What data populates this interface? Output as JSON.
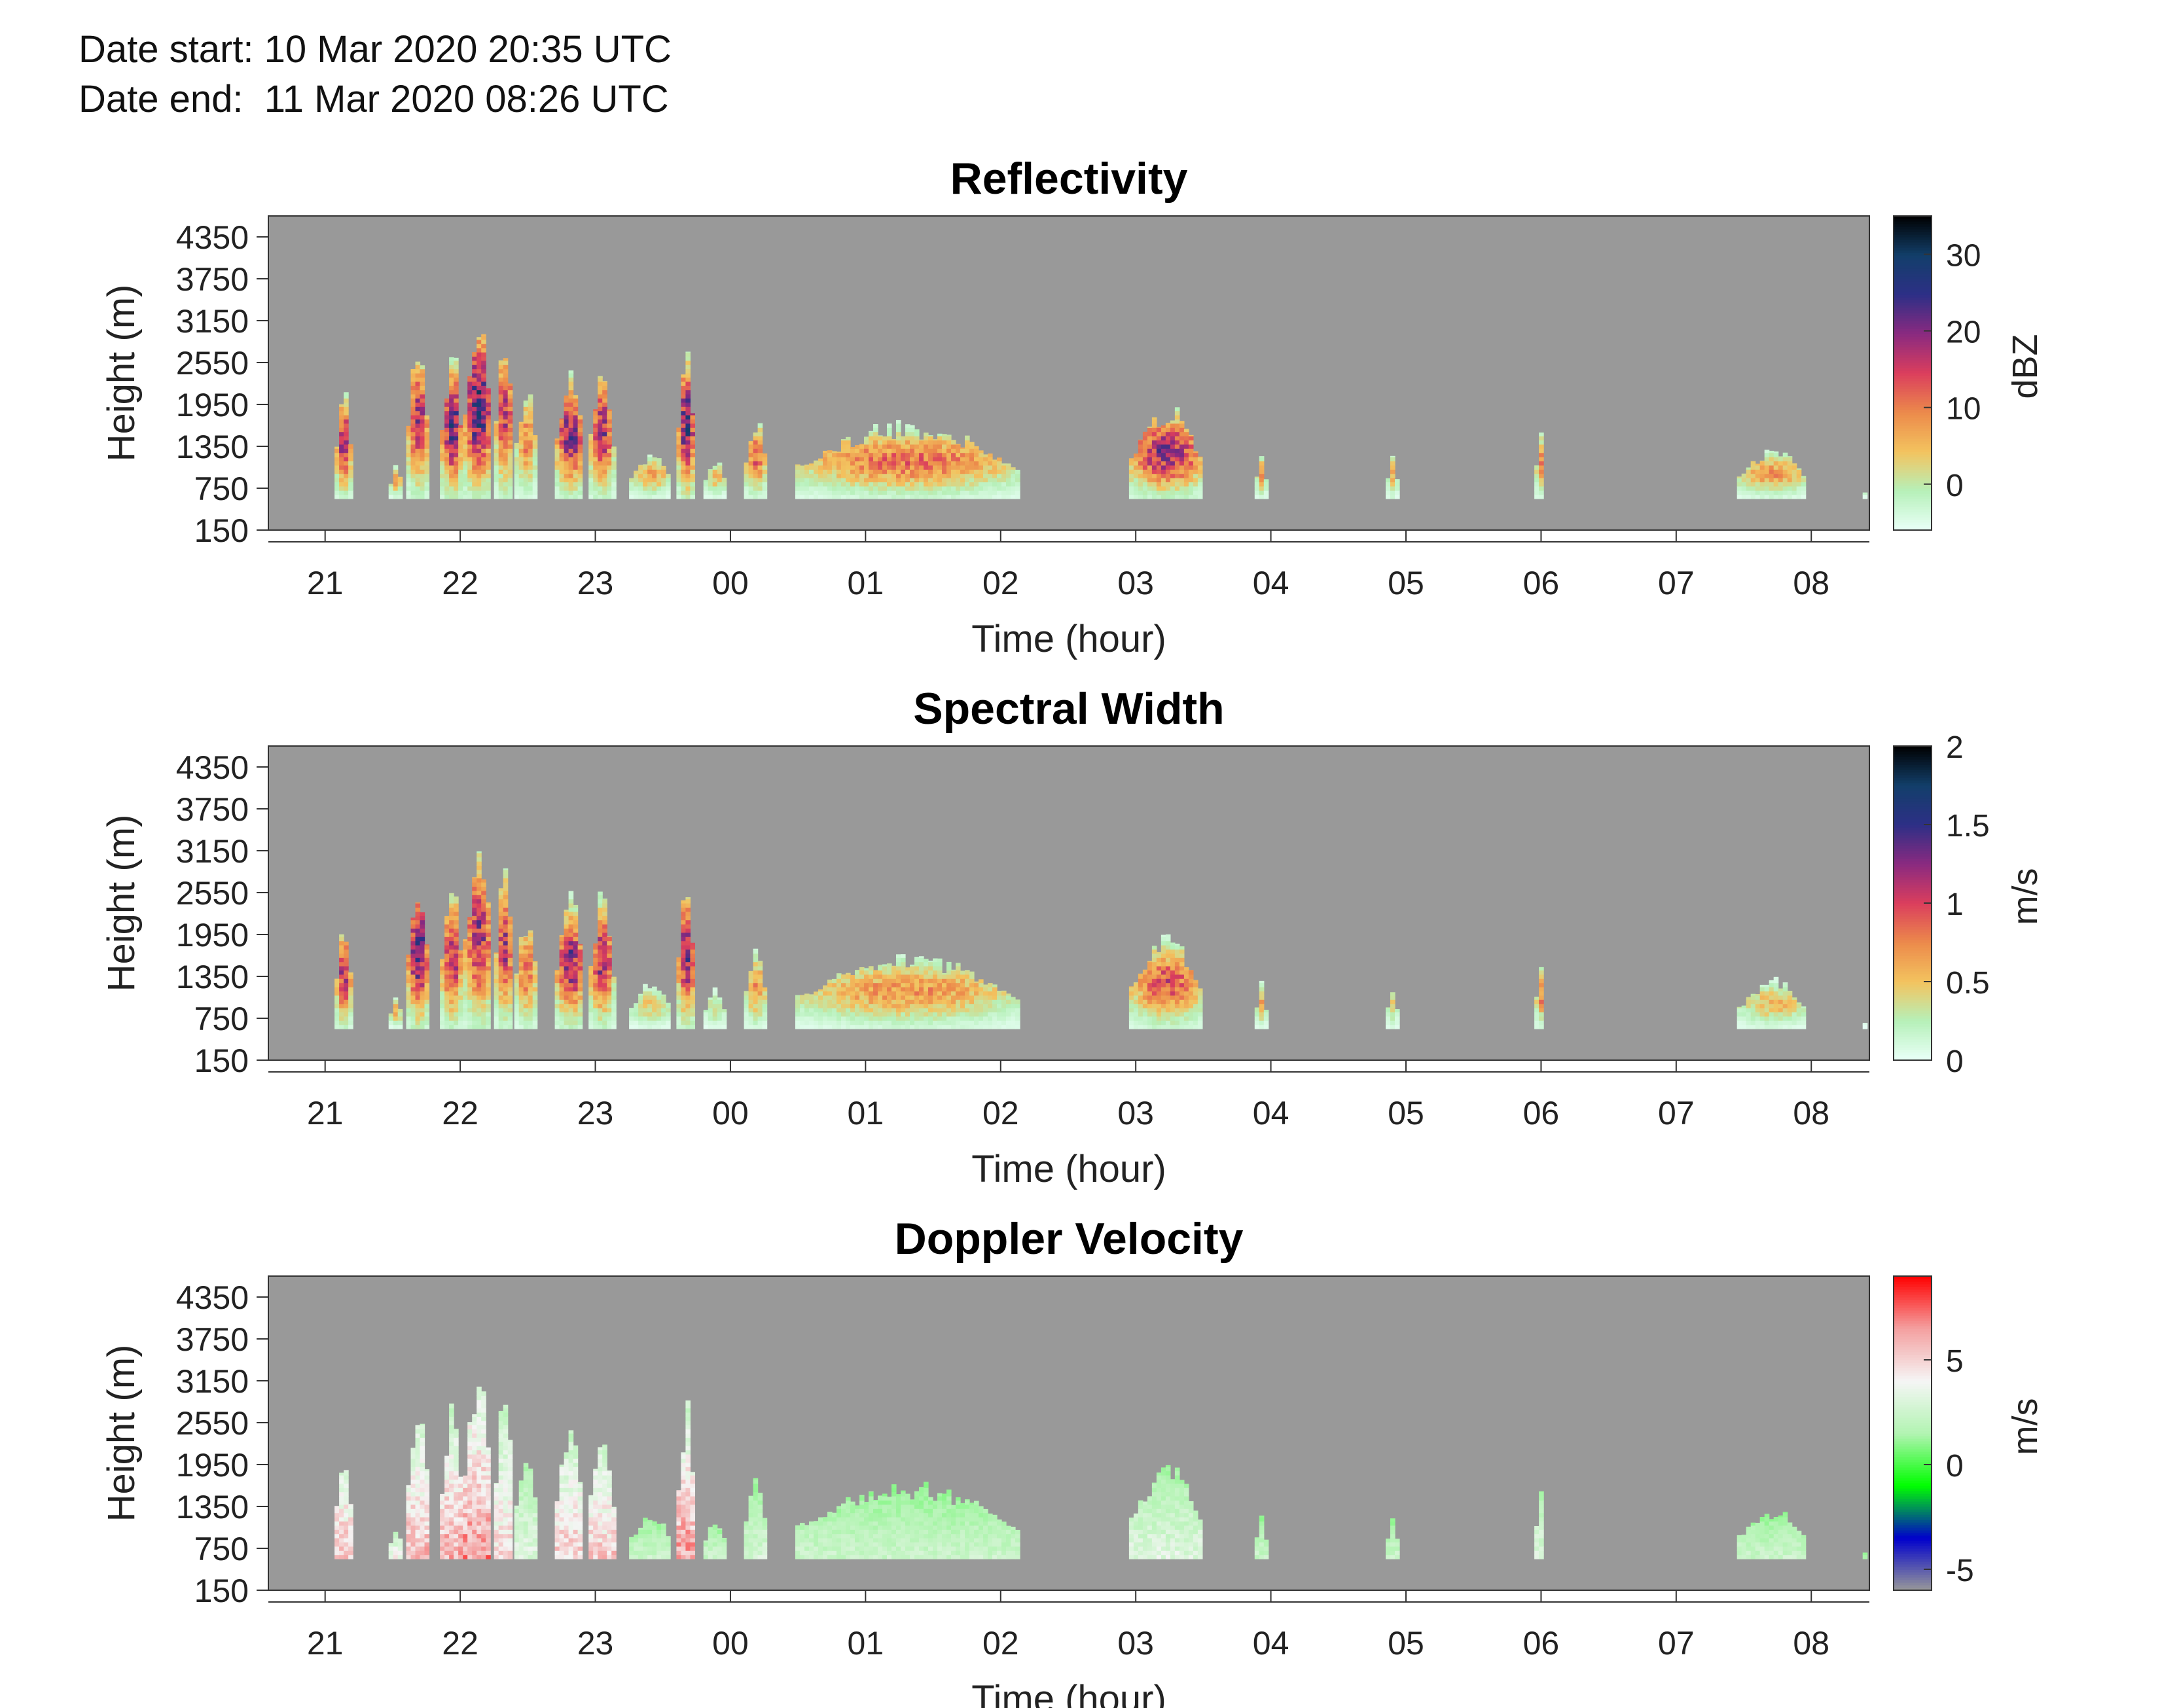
{
  "header": {
    "date_start_label": "Date start:",
    "date_start_value": "10 Mar 2020 20:35 UTC",
    "date_end_label": "Date end:",
    "date_end_value": "11 Mar 2020 08:26 UTC"
  },
  "colors": {
    "missing_background": "#999999",
    "reflectivity_colormap": [
      "#eafff8",
      "#b6f0b9",
      "#f3c35f",
      "#ec8a4b",
      "#db3e5d",
      "#8a2a80",
      "#2d2f86",
      "#123f6a",
      "#000000"
    ],
    "spectral_width_colormap": [
      "#eafff8",
      "#b6f0b9",
      "#f3c35f",
      "#ec8a4b",
      "#db3e5d",
      "#8a2a80",
      "#2d2f86",
      "#123f6a",
      "#000000"
    ],
    "doppler_colormap": [
      "#999999",
      "#0000cc",
      "#00ff00",
      "#b2f4b2",
      "#f5f5f5",
      "#f4a0a0",
      "#ff0000"
    ]
  },
  "chart_data": [
    {
      "type": "heatmap",
      "title": "Reflectivity",
      "xlabel": "Time (hour)",
      "ylabel": "Height (m)",
      "colorbar_label": "dBZ",
      "colorbar_ticks": [
        "0",
        "10",
        "20",
        "30"
      ],
      "colorbar_tick_values": [
        0,
        10,
        20,
        30
      ],
      "colorbar_range": [
        -6,
        35
      ],
      "x_ticks": [
        "21",
        "22",
        "23",
        "00",
        "01",
        "02",
        "03",
        "04",
        "05",
        "06",
        "07",
        "08"
      ],
      "x_tick_values": [
        21,
        22,
        23,
        24,
        25,
        26,
        27,
        28,
        29,
        30,
        31,
        32
      ],
      "xlim": [
        20.58,
        32.43
      ],
      "y_ticks": [
        "150",
        "750",
        "1350",
        "1950",
        "2550",
        "3150",
        "3750",
        "4350"
      ],
      "y_tick_values": [
        150,
        750,
        1350,
        1950,
        2550,
        3150,
        3750,
        4350
      ],
      "ylim": [
        150,
        4650
      ],
      "grid": false,
      "echo_cells": [
        {
          "start": 21.07,
          "end": 21.18,
          "top": 2300,
          "peak": 25
        },
        {
          "start": 21.47,
          "end": 21.55,
          "top": 1100,
          "peak": 12
        },
        {
          "start": 21.6,
          "end": 21.75,
          "top": 3000,
          "peak": 24
        },
        {
          "start": 21.85,
          "end": 22.0,
          "top": 2850,
          "peak": 30
        },
        {
          "start": 22.02,
          "end": 22.22,
          "top": 3500,
          "peak": 33
        },
        {
          "start": 22.25,
          "end": 22.38,
          "top": 3200,
          "peak": 22
        },
        {
          "start": 22.4,
          "end": 22.55,
          "top": 2400,
          "peak": 14
        },
        {
          "start": 22.7,
          "end": 22.9,
          "top": 2600,
          "peak": 27
        },
        {
          "start": 22.95,
          "end": 23.12,
          "top": 2700,
          "peak": 25
        },
        {
          "start": 23.25,
          "end": 23.55,
          "top": 1300,
          "peak": 10
        },
        {
          "start": 23.6,
          "end": 23.72,
          "top": 2900,
          "peak": 32
        },
        {
          "start": 23.8,
          "end": 23.95,
          "top": 1200,
          "peak": 8
        },
        {
          "start": 24.1,
          "end": 24.25,
          "top": 1850,
          "peak": 17
        },
        {
          "start": 24.48,
          "end": 26.12,
          "top": 1750,
          "peak": 16
        },
        {
          "start": 26.95,
          "end": 27.48,
          "top": 2000,
          "peak": 26
        },
        {
          "start": 27.88,
          "end": 27.95,
          "top": 1300,
          "peak": 12
        },
        {
          "start": 28.85,
          "end": 28.92,
          "top": 1300,
          "peak": 10
        },
        {
          "start": 29.95,
          "end": 30.0,
          "top": 1700,
          "peak": 14
        },
        {
          "start": 31.45,
          "end": 31.95,
          "top": 1350,
          "peak": 12
        },
        {
          "start": 32.38,
          "end": 32.4,
          "top": 800,
          "peak": 3
        }
      ]
    },
    {
      "type": "heatmap",
      "title": "Spectral Width",
      "xlabel": "Time (hour)",
      "ylabel": "Height (m)",
      "colorbar_label": "m/s",
      "colorbar_ticks": [
        "0",
        "0.5",
        "1",
        "1.5",
        "2"
      ],
      "colorbar_tick_values": [
        0,
        0.5,
        1,
        1.5,
        2
      ],
      "colorbar_range": [
        0,
        2
      ],
      "x_ticks": [
        "21",
        "22",
        "23",
        "00",
        "01",
        "02",
        "03",
        "04",
        "05",
        "06",
        "07",
        "08"
      ],
      "x_tick_values": [
        21,
        22,
        23,
        24,
        25,
        26,
        27,
        28,
        29,
        30,
        31,
        32
      ],
      "xlim": [
        20.58,
        32.43
      ],
      "y_ticks": [
        "150",
        "750",
        "1350",
        "1950",
        "2550",
        "3150",
        "3750",
        "4350"
      ],
      "y_tick_values": [
        150,
        750,
        1350,
        1950,
        2550,
        3150,
        3750,
        4350
      ],
      "ylim": [
        150,
        4650
      ],
      "grid": false,
      "echo_cells": [
        {
          "start": 21.07,
          "end": 21.18,
          "top": 2300,
          "peak": 1.5
        },
        {
          "start": 21.47,
          "end": 21.55,
          "top": 1100,
          "peak": 0.8
        },
        {
          "start": 21.6,
          "end": 21.75,
          "top": 3000,
          "peak": 1.8
        },
        {
          "start": 21.85,
          "end": 22.0,
          "top": 2850,
          "peak": 1.5
        },
        {
          "start": 22.02,
          "end": 22.22,
          "top": 3500,
          "peak": 1.5
        },
        {
          "start": 22.25,
          "end": 22.38,
          "top": 3200,
          "peak": 1.4
        },
        {
          "start": 22.4,
          "end": 22.55,
          "top": 2400,
          "peak": 1.1
        },
        {
          "start": 22.7,
          "end": 22.9,
          "top": 2600,
          "peak": 1.6
        },
        {
          "start": 22.95,
          "end": 23.12,
          "top": 2700,
          "peak": 1.5
        },
        {
          "start": 23.25,
          "end": 23.55,
          "top": 1300,
          "peak": 0.6
        },
        {
          "start": 23.6,
          "end": 23.72,
          "top": 2900,
          "peak": 1.7
        },
        {
          "start": 23.8,
          "end": 23.95,
          "top": 1200,
          "peak": 0.5
        },
        {
          "start": 24.1,
          "end": 24.25,
          "top": 1850,
          "peak": 0.9
        },
        {
          "start": 24.48,
          "end": 26.12,
          "top": 1750,
          "peak": 0.9
        },
        {
          "start": 26.95,
          "end": 27.48,
          "top": 2000,
          "peak": 1.2
        },
        {
          "start": 27.88,
          "end": 27.95,
          "top": 1300,
          "peak": 0.8
        },
        {
          "start": 28.85,
          "end": 28.92,
          "top": 1300,
          "peak": 0.6
        },
        {
          "start": 29.95,
          "end": 30.0,
          "top": 1700,
          "peak": 1.1
        },
        {
          "start": 31.45,
          "end": 31.95,
          "top": 1350,
          "peak": 0.7
        },
        {
          "start": 32.38,
          "end": 32.4,
          "top": 800,
          "peak": 0.2
        }
      ]
    },
    {
      "type": "heatmap",
      "title": "Doppler Velocity",
      "xlabel": "Time (hour)",
      "ylabel": "Height (m)",
      "colorbar_label": "m/s",
      "colorbar_ticks": [
        "-5",
        "0",
        "5"
      ],
      "colorbar_tick_values": [
        -5,
        0,
        5
      ],
      "colorbar_range": [
        -6,
        9
      ],
      "x_ticks": [
        "21",
        "22",
        "23",
        "00",
        "01",
        "02",
        "03",
        "04",
        "05",
        "06",
        "07",
        "08"
      ],
      "x_tick_values": [
        21,
        22,
        23,
        24,
        25,
        26,
        27,
        28,
        29,
        30,
        31,
        32
      ],
      "xlim": [
        20.58,
        32.43
      ],
      "y_ticks": [
        "150",
        "750",
        "1350",
        "1950",
        "2550",
        "3150",
        "3750",
        "4350"
      ],
      "y_tick_values": [
        150,
        750,
        1350,
        1950,
        2550,
        3150,
        3750,
        4350
      ],
      "ylim": [
        150,
        4650
      ],
      "grid": false,
      "echo_cells": [
        {
          "start": 21.07,
          "end": 21.18,
          "top": 2300,
          "peak": 7
        },
        {
          "start": 21.47,
          "end": 21.55,
          "top": 1100,
          "peak": 5
        },
        {
          "start": 21.6,
          "end": 21.75,
          "top": 3000,
          "peak": 7
        },
        {
          "start": 21.85,
          "end": 22.0,
          "top": 2850,
          "peak": 7.5
        },
        {
          "start": 22.02,
          "end": 22.22,
          "top": 3500,
          "peak": 8
        },
        {
          "start": 22.25,
          "end": 22.38,
          "top": 3200,
          "peak": 6
        },
        {
          "start": 22.4,
          "end": 22.55,
          "top": 2400,
          "peak": 4
        },
        {
          "start": 22.7,
          "end": 22.9,
          "top": 2600,
          "peak": 6.5
        },
        {
          "start": 22.95,
          "end": 23.12,
          "top": 2700,
          "peak": 6.5
        },
        {
          "start": 23.25,
          "end": 23.55,
          "top": 1300,
          "peak": 3
        },
        {
          "start": 23.6,
          "end": 23.72,
          "top": 2900,
          "peak": 8
        },
        {
          "start": 23.8,
          "end": 23.95,
          "top": 1200,
          "peak": 3
        },
        {
          "start": 24.1,
          "end": 24.25,
          "top": 1850,
          "peak": 3.5
        },
        {
          "start": 24.48,
          "end": 26.12,
          "top": 1750,
          "peak": 3
        },
        {
          "start": 26.95,
          "end": 27.48,
          "top": 2000,
          "peak": 4
        },
        {
          "start": 27.88,
          "end": 27.95,
          "top": 1300,
          "peak": 3
        },
        {
          "start": 28.85,
          "end": 28.92,
          "top": 1300,
          "peak": 3
        },
        {
          "start": 29.95,
          "end": 30.0,
          "top": 1700,
          "peak": 4
        },
        {
          "start": 31.45,
          "end": 31.95,
          "top": 1350,
          "peak": 3
        },
        {
          "start": 32.38,
          "end": 32.4,
          "top": 800,
          "peak": 2
        }
      ]
    }
  ]
}
